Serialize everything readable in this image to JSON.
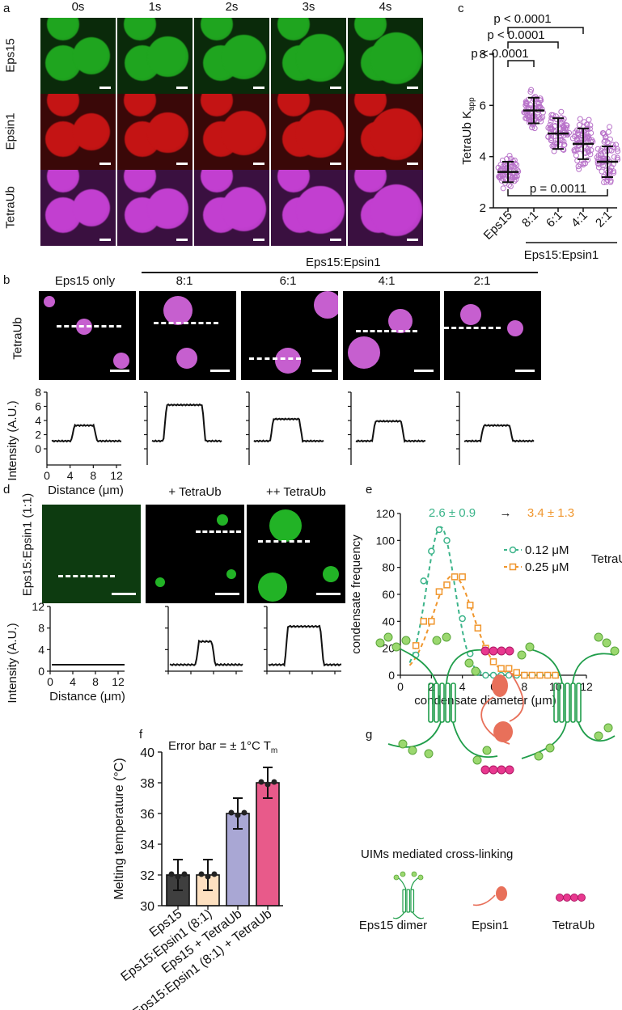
{
  "panels": {
    "a": {
      "letter": "a",
      "time_labels": [
        "0s",
        "1s",
        "2s",
        "3s",
        "4s"
      ],
      "row_labels": [
        "Eps15",
        "Epsin1",
        "TetraUb"
      ],
      "colors": {
        "Eps15": "#1fa51f",
        "Epsin1": "#c41414",
        "TetraUb": "#c23fd0"
      }
    },
    "b": {
      "letter": "b",
      "group_label": "Eps15:Epsin1",
      "column_labels": [
        "Eps15 only",
        "8:1",
        "6:1",
        "4:1",
        "2:1"
      ],
      "row_label": "TetraUb",
      "ylabel": "Intensity (A.U.)",
      "xlabel": "Distance (μm)",
      "yticks": [
        "0",
        "2",
        "4",
        "6",
        "8"
      ],
      "xticks": [
        "0",
        "4",
        "8",
        "12"
      ]
    },
    "c": {
      "letter": "c",
      "ylabel": "TetraUb K",
      "ylabel_sub": "app",
      "categories": [
        "Eps15",
        "8:1",
        "6:1",
        "4:1",
        "2:1"
      ],
      "group_label": "Eps15:Epsin1",
      "yticks": [
        "2",
        "4",
        "6",
        "8"
      ],
      "p_values": [
        "p < 0.0001",
        "p < 0.0001",
        "p < 0.0001",
        "p = 0.0011"
      ]
    },
    "d": {
      "letter": "d",
      "row_label": "Eps15:Epsin1 (1:1)",
      "column_labels": [
        "",
        "+ TetraUb",
        "++ TetraUb"
      ],
      "ylabel": "Intensity (A.U.)",
      "xlabel": "Distance (μm)",
      "yticks": [
        "0",
        "4",
        "8",
        "12"
      ],
      "xticks": [
        "0",
        "4",
        "8",
        "12"
      ]
    },
    "e": {
      "letter": "e",
      "ylabel": "condensate frequency",
      "xlabel": "condensate diameter (μm)",
      "yticks": [
        "0",
        "20",
        "40",
        "60",
        "80",
        "100",
        "120"
      ],
      "xticks": [
        "0",
        "2",
        "4",
        "6",
        "8",
        "10",
        "12"
      ],
      "stat_green": "2.6 ± 0.9",
      "arrow": "→",
      "stat_orange": "3.4 ± 1.3",
      "legend": [
        "0.12 μM",
        "0.25 μM"
      ],
      "legend_title": "TetraUb",
      "colors": {
        "green": "#3cb48a",
        "orange": "#f0962d"
      }
    },
    "f": {
      "letter": "f",
      "ylabel": "Melting temperature (°C)",
      "annotation": "Error bar = ± 1°C T",
      "annotation_sub": "m",
      "yticks": [
        "30",
        "32",
        "34",
        "36",
        "38",
        "40"
      ],
      "categories": [
        "Eps15",
        "Eps15:Epsin1 (8:1)",
        "Eps15 + TetraUb",
        "Eps15:Epsin1 (8:1) + TetraUb"
      ]
    },
    "g": {
      "letter": "g",
      "caption": "UIMs mediated cross-linking",
      "legend": [
        "Eps15 dimer",
        "Epsin1",
        "TetraUb"
      ]
    }
  },
  "chart_data": [
    {
      "type": "scatter",
      "panel": "c",
      "categories": [
        "Eps15",
        "8:1",
        "6:1",
        "4:1",
        "2:1"
      ],
      "ylabel": "TetraUb Kapp",
      "ylim": [
        2,
        8
      ],
      "means": [
        3.4,
        5.8,
        4.9,
        4.5,
        3.8
      ],
      "sd": [
        0.4,
        0.5,
        0.6,
        0.6,
        0.6
      ],
      "point_range": [
        [
          2.6,
          4.3
        ],
        [
          4.9,
          6.8
        ],
        [
          3.8,
          6.1
        ],
        [
          3.3,
          5.9
        ],
        [
          2.6,
          5.5
        ]
      ]
    },
    {
      "type": "line",
      "panel": "e",
      "xlabel": "condensate diameter (μm)",
      "ylabel": "condensate frequency",
      "xlim": [
        0,
        12
      ],
      "ylim": [
        0,
        120
      ],
      "series": [
        {
          "name": "0.12 μM",
          "x": [
            1,
            1.5,
            2,
            2.5,
            3,
            3.5,
            4,
            4.5,
            5,
            5.5,
            6,
            6.5,
            7,
            7.5,
            8,
            8.5,
            9,
            9.5,
            10
          ],
          "y": [
            15,
            70,
            92,
            108,
            100,
            73,
            42,
            16,
            2,
            0,
            0,
            0,
            0,
            0,
            0,
            0,
            0,
            0,
            0
          ]
        },
        {
          "name": "0.25 μM",
          "x": [
            1,
            1.5,
            2,
            2.5,
            3,
            3.5,
            4,
            4.5,
            5,
            5.5,
            6,
            6.5,
            7,
            7.5,
            8,
            8.5,
            9,
            9.5,
            10
          ],
          "y": [
            22,
            40,
            40,
            62,
            67,
            73,
            73,
            52,
            35,
            20,
            10,
            5,
            5,
            2,
            0,
            0,
            0,
            0,
            0
          ]
        }
      ]
    },
    {
      "type": "bar",
      "panel": "f",
      "categories": [
        "Eps15",
        "Eps15:Epsin1 (8:1)",
        "Eps15 + TetraUb",
        "Eps15:Epsin1 (8:1) + TetraUb"
      ],
      "values": [
        32,
        32,
        36,
        38
      ],
      "error": [
        1,
        1,
        1,
        1
      ],
      "ylim": [
        30,
        40
      ],
      "colors": [
        "#3f3f3f",
        "#fde0c0",
        "#a9a7d4",
        "#e85a8a"
      ]
    },
    {
      "type": "line",
      "panel": "b",
      "xlabel": "Distance (μm)",
      "ylabel": "Intensity (A.U.)",
      "ylim": [
        0,
        8
      ],
      "profiles": [
        {
          "name": "Eps15 only",
          "baseline": 1.1,
          "peak": 3.3
        },
        {
          "name": "8:1",
          "baseline": 1.1,
          "peak": 6.2
        },
        {
          "name": "6:1",
          "baseline": 1.1,
          "peak": 4.2
        },
        {
          "name": "4:1",
          "baseline": 1.1,
          "peak": 3.9
        },
        {
          "name": "2:1",
          "baseline": 1.1,
          "peak": 3.3
        }
      ]
    },
    {
      "type": "line",
      "panel": "d",
      "xlabel": "Distance (μm)",
      "ylabel": "Intensity (A.U.)",
      "ylim": [
        0,
        12
      ],
      "profiles": [
        {
          "name": "no TetraUb",
          "baseline": 1.2,
          "peak": 1.2
        },
        {
          "name": "+ TetraUb",
          "baseline": 1.2,
          "peak": 5.5
        },
        {
          "name": "++ TetraUb",
          "baseline": 1.2,
          "peak": 8.3
        }
      ]
    }
  ]
}
